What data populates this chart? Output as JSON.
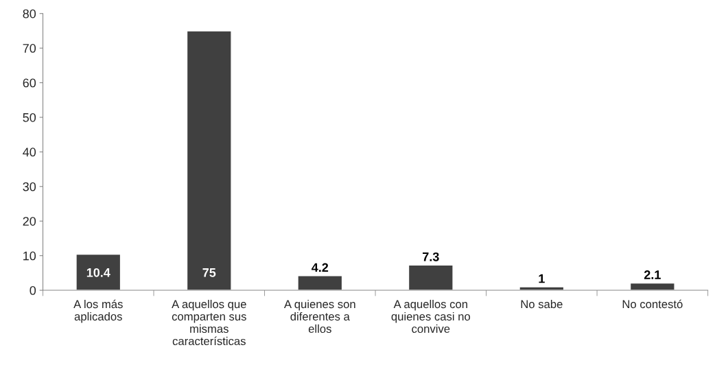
{
  "chart_data": {
    "type": "bar",
    "categories": [
      "A los más aplicados",
      "A aquellos que comparten sus mismas características",
      "A quienes son diferentes a ellos",
      "A aquellos con quienes casi no convive",
      "No sabe",
      "No contestó"
    ],
    "values": [
      10.4,
      75,
      4.2,
      7.3,
      1,
      2.1
    ],
    "color": "#404040",
    "ylim": [
      0,
      80
    ],
    "yticks": [
      0,
      10,
      20,
      30,
      40,
      50,
      60,
      70,
      80
    ],
    "data_labels": true,
    "grid": false,
    "legend": false
  }
}
